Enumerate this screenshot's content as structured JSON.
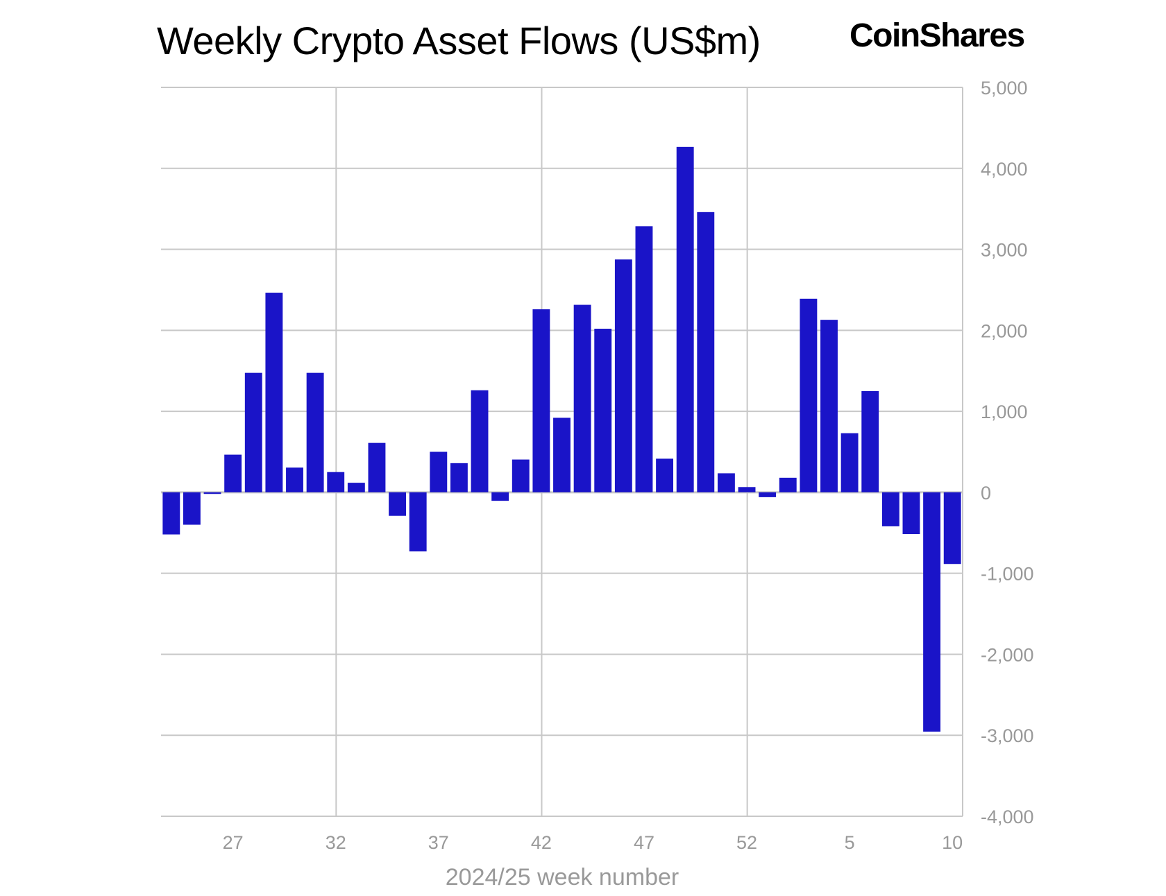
{
  "chart_data": {
    "type": "bar",
    "title": "Weekly Crypto Asset Flows (US$m)",
    "brand": "CoinShares",
    "xlabel": "2024/25 week number",
    "ylabel": "",
    "categories": [
      "24",
      "25",
      "26",
      "27",
      "28",
      "29",
      "30",
      "31",
      "32",
      "33",
      "34",
      "35",
      "36",
      "37",
      "38",
      "39",
      "40",
      "41",
      "42",
      "43",
      "44",
      "45",
      "46",
      "47",
      "48",
      "49",
      "50",
      "51",
      "52",
      "1",
      "2",
      "3",
      "4",
      "5",
      "6",
      "7",
      "8",
      "9",
      "10"
    ],
    "values": [
      -520,
      -400,
      -20,
      465,
      1475,
      2465,
      305,
      1475,
      250,
      118,
      610,
      -290,
      -730,
      500,
      360,
      1260,
      -105,
      405,
      2260,
      920,
      2315,
      2020,
      2875,
      3285,
      415,
      4265,
      3460,
      235,
      65,
      -60,
      180,
      2390,
      2130,
      730,
      1250,
      -420,
      -515,
      -2955,
      -885
    ],
    "x_tick_labels": [
      "27",
      "32",
      "37",
      "42",
      "47",
      "52",
      "5",
      "10"
    ],
    "y_tick_labels": [
      "5,000",
      "4,000",
      "3,000",
      "2,000",
      "1,000",
      "0",
      "-1,000",
      "-2,000",
      "-3,000",
      "-4,000"
    ],
    "ylim": [
      -4000,
      5000
    ],
    "y_axis_position": "right",
    "grid": true,
    "bar_color": "#1a14c8",
    "grid_color": "#c8c8c8",
    "tick_color": "#999999"
  }
}
